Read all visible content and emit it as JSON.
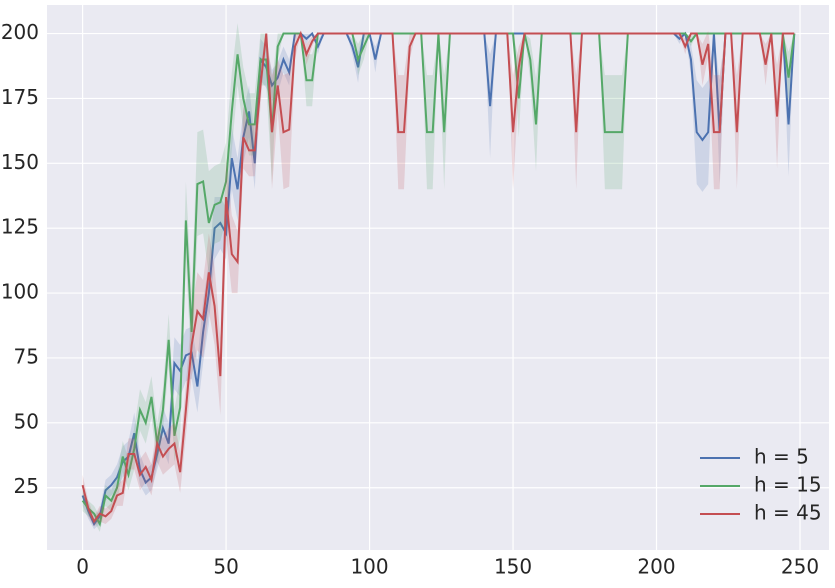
{
  "chart_data": {
    "type": "line",
    "x": [
      0,
      2,
      4,
      6,
      8,
      10,
      12,
      14,
      16,
      18,
      20,
      22,
      24,
      26,
      28,
      30,
      32,
      34,
      36,
      38,
      40,
      42,
      44,
      46,
      48,
      50,
      52,
      54,
      56,
      58,
      60,
      62,
      64,
      66,
      68,
      70,
      72,
      74,
      76,
      78,
      80,
      82,
      84,
      86,
      88,
      90,
      92,
      94,
      96,
      98,
      100,
      102,
      104,
      106,
      108,
      110,
      112,
      114,
      116,
      118,
      120,
      122,
      124,
      126,
      128,
      130,
      132,
      134,
      136,
      138,
      140,
      142,
      144,
      146,
      148,
      150,
      152,
      154,
      156,
      158,
      160,
      162,
      164,
      166,
      168,
      170,
      172,
      174,
      176,
      178,
      180,
      182,
      184,
      186,
      188,
      190,
      192,
      194,
      196,
      198,
      200,
      202,
      204,
      206,
      208,
      210,
      212,
      214,
      216,
      218,
      220,
      222,
      224,
      226,
      228,
      230,
      232,
      234,
      236,
      238,
      240,
      242,
      244,
      246,
      248
    ],
    "series": [
      {
        "name": "h = 5",
        "color": "#4c72b0",
        "values": [
          22,
          16,
          11,
          14,
          24,
          26,
          29,
          35,
          37,
          46,
          32,
          27,
          29,
          38,
          48,
          42,
          73,
          70,
          76,
          77,
          64,
          85,
          100,
          125,
          127,
          123,
          152,
          140,
          160,
          170,
          150,
          190,
          187,
          180,
          183,
          190,
          185,
          200,
          200,
          198,
          200,
          195,
          200,
          200,
          200,
          200,
          200,
          195,
          187,
          200,
          200,
          190,
          200,
          200,
          200,
          200,
          200,
          200,
          200,
          200,
          200,
          200,
          200,
          200,
          200,
          200,
          200,
          200,
          200,
          200,
          200,
          172,
          200,
          200,
          200,
          200,
          200,
          200,
          200,
          200,
          200,
          200,
          200,
          200,
          200,
          200,
          200,
          200,
          200,
          200,
          200,
          200,
          200,
          200,
          200,
          200,
          200,
          200,
          200,
          200,
          200,
          200,
          200,
          200,
          198,
          200,
          190,
          162,
          159,
          162,
          200,
          162,
          200,
          200,
          200,
          200,
          200,
          200,
          200,
          200,
          200,
          200,
          200,
          165,
          200
        ],
        "error": [
          4,
          3,
          2,
          3,
          4,
          4,
          5,
          6,
          6,
          8,
          6,
          5,
          5,
          6,
          8,
          8,
          10,
          10,
          10,
          10,
          10,
          12,
          12,
          12,
          10,
          10,
          12,
          12,
          10,
          10,
          10,
          8,
          8,
          6,
          6,
          5,
          5,
          0,
          0,
          2,
          0,
          3,
          0,
          0,
          0,
          0,
          0,
          3,
          6,
          0,
          0,
          5,
          0,
          0,
          0,
          0,
          0,
          0,
          0,
          0,
          0,
          0,
          0,
          0,
          0,
          0,
          0,
          0,
          0,
          0,
          0,
          20,
          0,
          0,
          0,
          0,
          0,
          0,
          0,
          0,
          0,
          0,
          0,
          0,
          0,
          0,
          0,
          0,
          0,
          0,
          0,
          0,
          0,
          0,
          0,
          0,
          0,
          0,
          0,
          0,
          0,
          0,
          0,
          0,
          2,
          0,
          6,
          20,
          20,
          20,
          0,
          20,
          0,
          0,
          0,
          0,
          0,
          0,
          0,
          0,
          0,
          0,
          0,
          20,
          0
        ]
      },
      {
        "name": "h = 15",
        "color": "#55a868",
        "values": [
          20,
          17,
          15,
          11,
          22,
          20,
          25,
          37,
          30,
          40,
          55,
          50,
          60,
          42,
          55,
          82,
          45,
          56,
          128,
          85,
          142,
          143,
          127,
          134,
          135,
          143,
          170,
          192,
          175,
          165,
          165,
          190,
          190,
          162,
          195,
          200,
          200,
          200,
          200,
          182,
          182,
          200,
          200,
          200,
          200,
          200,
          200,
          200,
          190,
          195,
          200,
          200,
          200,
          200,
          200,
          200,
          200,
          200,
          200,
          200,
          162,
          162,
          200,
          162,
          200,
          200,
          200,
          200,
          200,
          200,
          200,
          200,
          200,
          200,
          200,
          200,
          175,
          200,
          190,
          165,
          200,
          200,
          200,
          200,
          200,
          200,
          200,
          200,
          200,
          200,
          200,
          162,
          162,
          162,
          162,
          200,
          200,
          200,
          200,
          200,
          200,
          200,
          200,
          200,
          200,
          200,
          197,
          200,
          200,
          200,
          200,
          200,
          200,
          200,
          200,
          200,
          200,
          200,
          200,
          200,
          200,
          200,
          200,
          183,
          200
        ],
        "error": [
          4,
          3,
          3,
          3,
          4,
          4,
          5,
          6,
          6,
          8,
          8,
          8,
          8,
          8,
          8,
          10,
          10,
          12,
          15,
          15,
          20,
          20,
          20,
          15,
          15,
          15,
          15,
          12,
          12,
          12,
          12,
          10,
          10,
          20,
          5,
          0,
          0,
          0,
          0,
          10,
          10,
          0,
          0,
          0,
          0,
          0,
          0,
          0,
          6,
          5,
          0,
          0,
          0,
          0,
          0,
          0,
          0,
          0,
          0,
          0,
          22,
          22,
          0,
          22,
          0,
          0,
          0,
          0,
          0,
          0,
          0,
          0,
          0,
          0,
          0,
          0,
          15,
          0,
          8,
          18,
          0,
          0,
          0,
          0,
          0,
          0,
          0,
          0,
          0,
          0,
          0,
          22,
          22,
          22,
          22,
          0,
          0,
          0,
          0,
          0,
          0,
          0,
          0,
          0,
          0,
          0,
          2,
          0,
          0,
          0,
          0,
          0,
          0,
          0,
          0,
          0,
          0,
          0,
          0,
          0,
          0,
          0,
          0,
          10,
          0
        ]
      },
      {
        "name": "h = 45",
        "color": "#c44e52",
        "values": [
          26,
          17,
          12,
          15,
          14,
          16,
          22,
          23,
          38,
          38,
          30,
          33,
          28,
          42,
          37,
          40,
          42,
          31,
          55,
          80,
          93,
          90,
          108,
          95,
          68,
          137,
          115,
          112,
          160,
          155,
          155,
          180,
          200,
          162,
          180,
          162,
          163,
          195,
          200,
          192,
          197,
          200,
          200,
          200,
          200,
          200,
          200,
          200,
          200,
          200,
          200,
          200,
          200,
          200,
          200,
          162,
          162,
          195,
          200,
          200,
          200,
          200,
          200,
          200,
          200,
          200,
          200,
          200,
          200,
          200,
          200,
          200,
          200,
          200,
          200,
          162,
          187,
          200,
          200,
          200,
          200,
          200,
          200,
          200,
          200,
          200,
          162,
          200,
          200,
          200,
          200,
          200,
          200,
          200,
          200,
          200,
          200,
          200,
          200,
          200,
          200,
          200,
          200,
          200,
          200,
          195,
          200,
          200,
          188,
          196,
          162,
          162,
          200,
          200,
          162,
          200,
          200,
          200,
          200,
          188,
          200,
          168,
          200,
          200,
          200
        ],
        "error": [
          4,
          3,
          2,
          3,
          3,
          3,
          4,
          5,
          6,
          6,
          6,
          6,
          6,
          7,
          7,
          8,
          8,
          8,
          10,
          12,
          15,
          15,
          15,
          15,
          15,
          15,
          15,
          12,
          12,
          10,
          10,
          8,
          0,
          22,
          10,
          22,
          22,
          5,
          0,
          4,
          2,
          0,
          0,
          0,
          0,
          0,
          0,
          0,
          0,
          0,
          0,
          0,
          0,
          0,
          0,
          22,
          22,
          5,
          0,
          0,
          0,
          0,
          0,
          0,
          0,
          0,
          0,
          0,
          0,
          0,
          0,
          0,
          0,
          0,
          0,
          22,
          8,
          0,
          0,
          0,
          0,
          0,
          0,
          0,
          0,
          0,
          22,
          0,
          0,
          0,
          0,
          0,
          0,
          0,
          0,
          0,
          0,
          0,
          0,
          0,
          0,
          0,
          0,
          0,
          0,
          3,
          0,
          0,
          8,
          5,
          22,
          22,
          0,
          0,
          22,
          0,
          0,
          0,
          0,
          8,
          0,
          20,
          0,
          0,
          0
        ]
      }
    ],
    "xlim": [
      -12.4,
      260.1
    ],
    "ylim": [
      1,
      211
    ],
    "xticks": [
      0,
      50,
      100,
      150,
      200,
      250
    ],
    "yticks": [
      25,
      50,
      75,
      100,
      125,
      150,
      175,
      200
    ],
    "grid": true,
    "legend": "lower right"
  }
}
